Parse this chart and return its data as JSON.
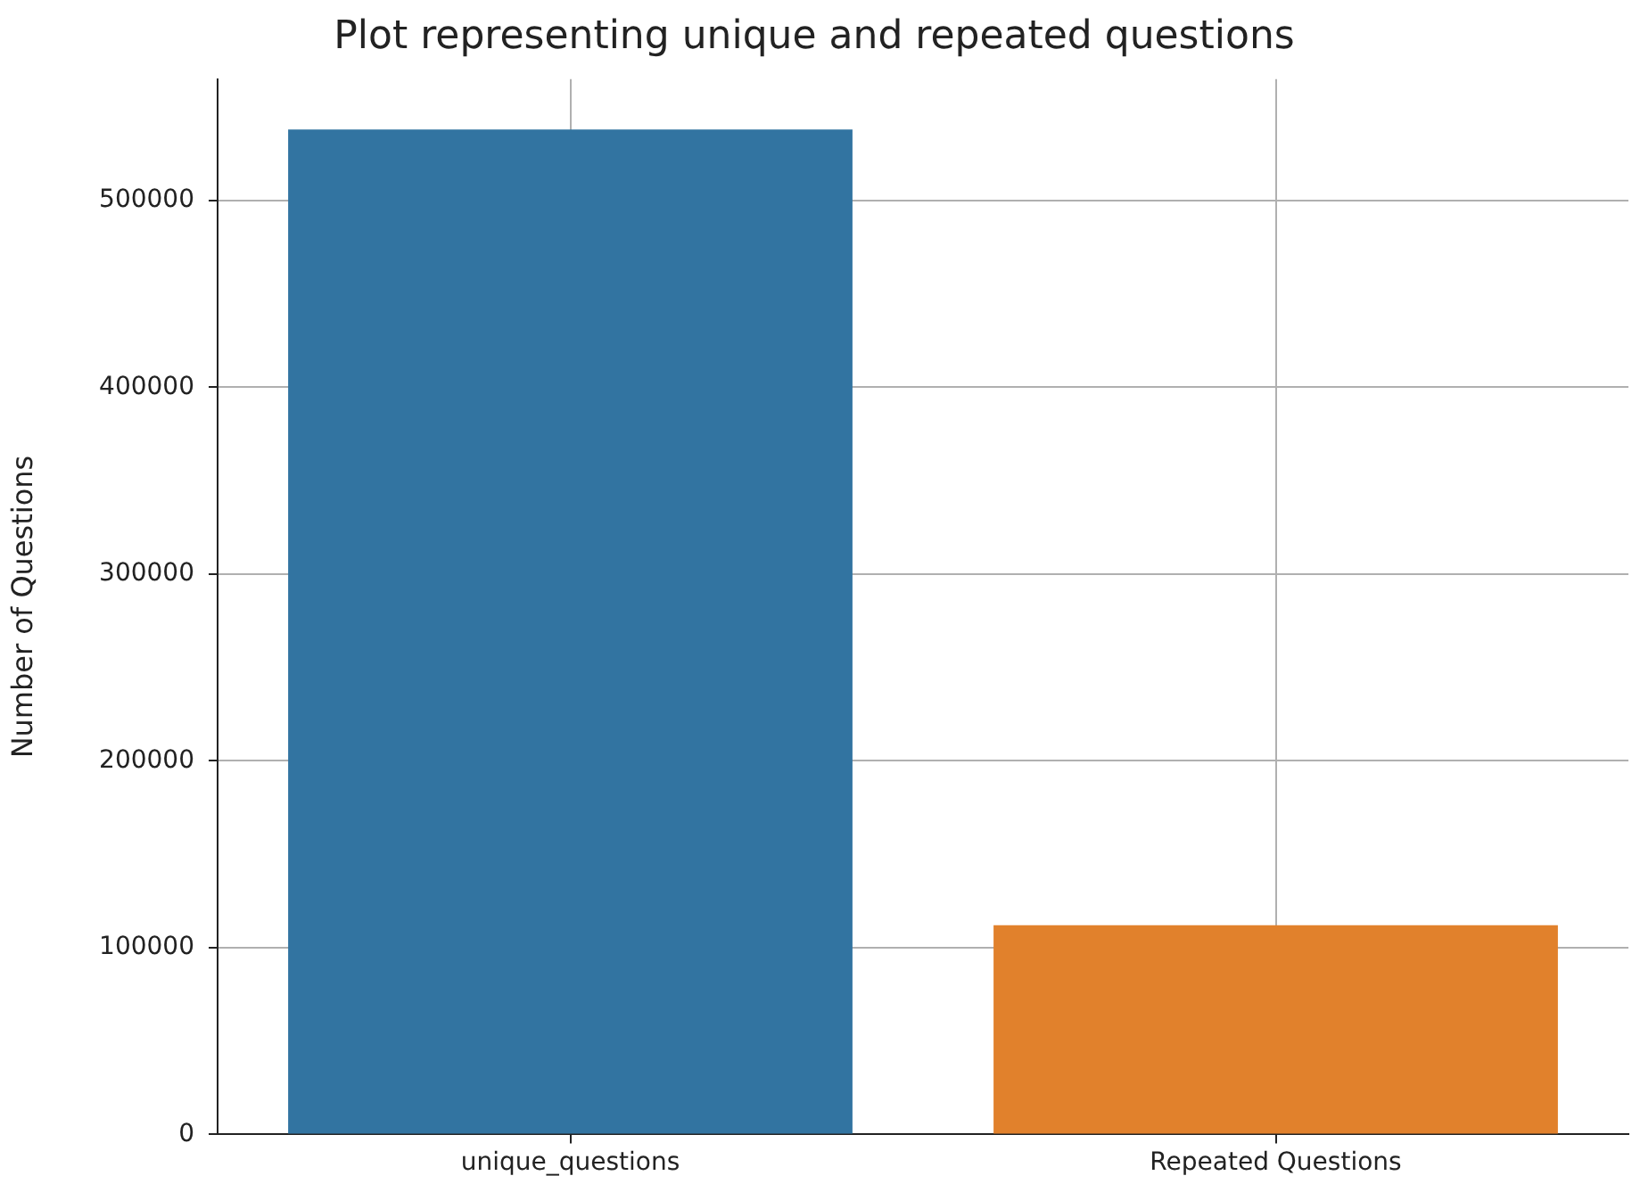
{
  "chart_data": {
    "type": "bar",
    "title": "Plot representing unique and repeated questions",
    "ylabel": "Number of Questions",
    "categories": [
      "unique_questions",
      "Repeated Questions"
    ],
    "values": [
      538000,
      112000
    ],
    "colors": [
      "#3274a1",
      "#e1812c"
    ],
    "ylim": [
      0,
      565000
    ],
    "yticks": [
      0,
      100000,
      200000,
      300000,
      400000,
      500000
    ],
    "grid": true
  }
}
